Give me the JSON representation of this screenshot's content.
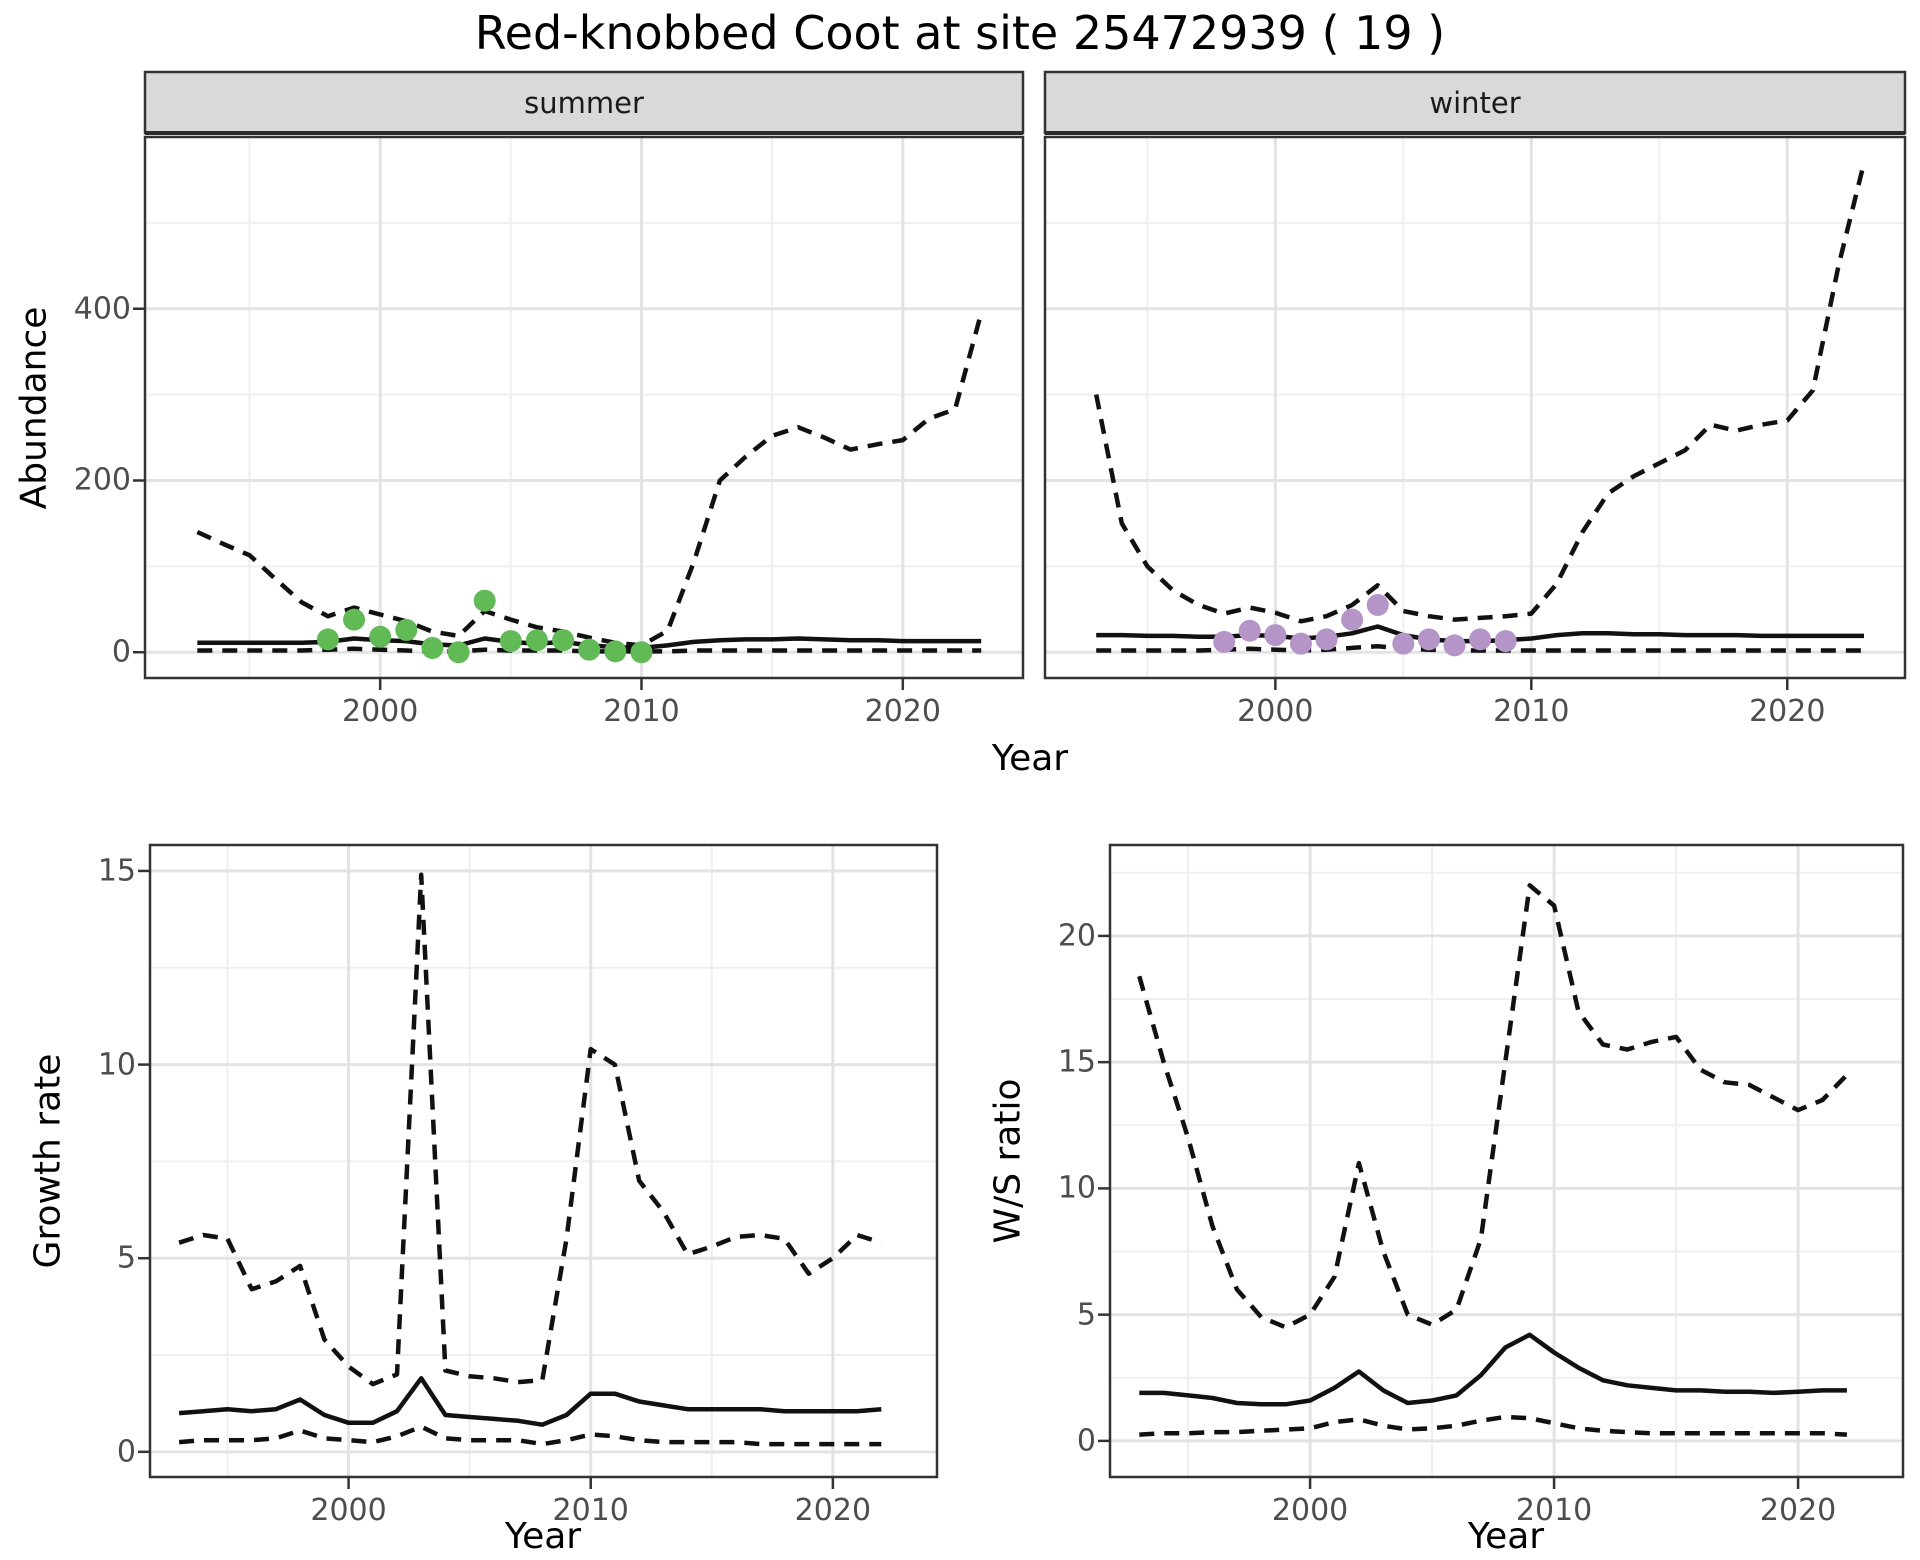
{
  "title": "Red-knobbed Coot at site 25472939 ( 19 )",
  "colors": {
    "summer_points": "#61BA56",
    "winter_points": "#B594C8",
    "strip_bg": "#D9D9D9",
    "panel_border": "#333333",
    "grid_major": "#E3E3E3",
    "grid_minor": "#EFEFEF",
    "line_color": "#111111",
    "tick_text": "#4D4D4D"
  },
  "facets": {
    "summer_label": "summer",
    "winter_label": "winter"
  },
  "axis_labels": {
    "abundance": "Abundance",
    "growth_rate": "Growth rate",
    "ws_ratio": "W/S ratio",
    "year": "Year"
  },
  "chart_data": [
    {
      "id": "abundance-summer",
      "type": "line",
      "facet_label": "summer",
      "ylabel": "Abundance",
      "xlabel": "Year",
      "xlim": [
        1991.0,
        2024.6
      ],
      "ylim": [
        -30,
        600
      ],
      "xticks": {
        "labels": [
          "2000",
          "2010",
          "2020"
        ],
        "values": [
          2000,
          2010,
          2020
        ],
        "minor": [
          1995,
          2005,
          2015
        ]
      },
      "yticks": {
        "labels": [
          "0",
          "200",
          "400"
        ],
        "values": [
          0,
          200,
          400
        ],
        "minor": [
          100,
          300,
          500
        ]
      },
      "x": [
        1993,
        1994,
        1995,
        1996,
        1997,
        1998,
        1999,
        2000,
        2001,
        2002,
        2003,
        2004,
        2005,
        2006,
        2007,
        2008,
        2009,
        2010,
        2011,
        2012,
        2013,
        2014,
        2015,
        2016,
        2017,
        2018,
        2019,
        2020,
        2021,
        2022,
        2023
      ],
      "series": [
        {
          "name": "upper-ci",
          "style": "dashed",
          "values": [
            140,
            126,
            113,
            85,
            58,
            42,
            52,
            44,
            36,
            24,
            19,
            48,
            38,
            29,
            24,
            17,
            11,
            8,
            25,
            105,
            200,
            228,
            252,
            262,
            250,
            236,
            242,
            247,
            272,
            283,
            395
          ]
        },
        {
          "name": "median",
          "style": "solid",
          "values": [
            11,
            11,
            11,
            11,
            11,
            12,
            16,
            14,
            13,
            9,
            8,
            16,
            12,
            10,
            12,
            8,
            6,
            5,
            8,
            12,
            14,
            15,
            15,
            16,
            15,
            14,
            14,
            13,
            13,
            13,
            13
          ]
        },
        {
          "name": "lower-ci",
          "style": "dashed",
          "values": [
            2,
            2,
            2,
            2,
            2,
            3,
            4,
            3,
            2,
            1,
            1,
            3,
            2,
            2,
            2,
            1,
            1,
            1,
            1,
            2,
            2,
            2,
            2,
            2,
            2,
            2,
            2,
            2,
            2,
            2,
            2
          ]
        }
      ],
      "points": {
        "name": "observed-summer-counts",
        "color": "#61BA56",
        "x": [
          1998,
          1999,
          2000,
          2001,
          2002,
          2003,
          2004,
          2005,
          2006,
          2007,
          2008,
          2009,
          2010
        ],
        "y": [
          15,
          38,
          18,
          26,
          5,
          0,
          60,
          13,
          14,
          14,
          3,
          1,
          0
        ]
      }
    },
    {
      "id": "abundance-winter",
      "type": "line",
      "facet_label": "winter",
      "ylabel": "Abundance",
      "xlabel": "Year",
      "xlim": [
        1991.0,
        2024.6
      ],
      "ylim": [
        -30,
        600
      ],
      "xticks": {
        "labels": [
          "2000",
          "2010",
          "2020"
        ],
        "values": [
          2000,
          2010,
          2020
        ],
        "minor": [
          1995,
          2005,
          2015
        ]
      },
      "yticks": {
        "labels": [
          "0",
          "200",
          "400"
        ],
        "values": [
          0,
          200,
          400
        ],
        "minor": [
          100,
          300,
          500
        ]
      },
      "x": [
        1993,
        1994,
        1995,
        1996,
        1997,
        1998,
        1999,
        2000,
        2001,
        2002,
        2003,
        2004,
        2005,
        2006,
        2007,
        2008,
        2009,
        2010,
        2011,
        2012,
        2013,
        2014,
        2015,
        2016,
        2017,
        2018,
        2019,
        2020,
        2021,
        2022,
        2023
      ],
      "series": [
        {
          "name": "upper-ci",
          "style": "dashed",
          "values": [
            300,
            150,
            100,
            72,
            55,
            45,
            52,
            46,
            36,
            42,
            55,
            78,
            48,
            42,
            38,
            40,
            42,
            45,
            80,
            140,
            185,
            205,
            220,
            235,
            265,
            258,
            265,
            270,
            305,
            450,
            570
          ]
        },
        {
          "name": "median",
          "style": "solid",
          "values": [
            20,
            20,
            19,
            19,
            18,
            18,
            20,
            19,
            16,
            18,
            22,
            30,
            20,
            15,
            13,
            13,
            14,
            16,
            20,
            22,
            22,
            21,
            21,
            20,
            20,
            20,
            19,
            19,
            19,
            19,
            19
          ]
        },
        {
          "name": "lower-ci",
          "style": "dashed",
          "values": [
            2,
            2,
            2,
            2,
            2,
            3,
            4,
            3,
            2,
            3,
            5,
            7,
            4,
            3,
            2,
            2,
            2,
            2,
            2,
            2,
            2,
            2,
            2,
            2,
            2,
            2,
            2,
            2,
            2,
            2,
            2
          ]
        }
      ],
      "points": {
        "name": "observed-winter-counts",
        "color": "#B594C8",
        "x": [
          1998,
          1999,
          2000,
          2001,
          2002,
          2003,
          2004,
          2005,
          2006,
          2007,
          2008,
          2009
        ],
        "y": [
          12,
          25,
          20,
          10,
          15,
          38,
          55,
          10,
          15,
          8,
          15,
          13
        ]
      }
    },
    {
      "id": "growth-rate",
      "type": "line",
      "ylabel": "Growth rate",
      "xlabel": "Year",
      "xlim": [
        1991.8,
        2024.3
      ],
      "ylim": [
        -0.65,
        15.67
      ],
      "xticks": {
        "labels": [
          "2000",
          "2010",
          "2020"
        ],
        "values": [
          2000,
          2010,
          2020
        ],
        "minor": [
          1995,
          2005,
          2015
        ]
      },
      "yticks": {
        "labels": [
          "0",
          "5",
          "10",
          "15"
        ],
        "values": [
          0,
          5,
          10,
          15
        ],
        "minor": [
          2.5,
          7.5,
          12.5
        ]
      },
      "x": [
        1993,
        1994,
        1995,
        1996,
        1997,
        1998,
        1999,
        2000,
        2001,
        2002,
        2003,
        2004,
        2005,
        2006,
        2007,
        2008,
        2009,
        2010,
        2011,
        2012,
        2013,
        2014,
        2015,
        2016,
        2017,
        2018,
        2019,
        2020,
        2021,
        2022
      ],
      "series": [
        {
          "name": "upper-ci",
          "style": "dashed",
          "values": [
            5.4,
            5.6,
            5.5,
            4.2,
            4.4,
            4.8,
            2.9,
            2.2,
            1.75,
            2.0,
            14.9,
            2.1,
            1.95,
            1.9,
            1.8,
            1.85,
            5.5,
            10.4,
            10.0,
            7.0,
            6.2,
            5.1,
            5.3,
            5.55,
            5.6,
            5.5,
            4.6,
            5.0,
            5.6,
            5.4
          ]
        },
        {
          "name": "median",
          "style": "solid",
          "values": [
            1.0,
            1.05,
            1.1,
            1.05,
            1.1,
            1.35,
            0.95,
            0.75,
            0.75,
            1.05,
            1.9,
            0.95,
            0.9,
            0.85,
            0.8,
            0.7,
            0.95,
            1.5,
            1.5,
            1.3,
            1.2,
            1.1,
            1.1,
            1.1,
            1.1,
            1.05,
            1.05,
            1.05,
            1.05,
            1.1
          ]
        },
        {
          "name": "lower-ci",
          "style": "dashed",
          "values": [
            0.25,
            0.3,
            0.3,
            0.3,
            0.35,
            0.55,
            0.35,
            0.3,
            0.25,
            0.4,
            0.65,
            0.35,
            0.3,
            0.3,
            0.3,
            0.2,
            0.3,
            0.45,
            0.4,
            0.3,
            0.25,
            0.25,
            0.25,
            0.25,
            0.2,
            0.2,
            0.2,
            0.2,
            0.2,
            0.2
          ]
        }
      ]
    },
    {
      "id": "ws-ratio",
      "type": "line",
      "ylabel": "W/S ratio",
      "xlabel": "Year",
      "xlim": [
        1991.8,
        2024.3
      ],
      "ylim": [
        -1.43,
        23.6
      ],
      "xticks": {
        "labels": [
          "2000",
          "2010",
          "2020"
        ],
        "values": [
          2000,
          2010,
          2020
        ],
        "minor": [
          1995,
          2005,
          2015
        ]
      },
      "yticks": {
        "labels": [
          "0",
          "5",
          "10",
          "15",
          "20"
        ],
        "values": [
          0,
          5,
          10,
          15,
          20
        ],
        "minor": [
          2.5,
          7.5,
          12.5,
          17.5,
          22.5
        ]
      },
      "x": [
        1993,
        1994,
        1995,
        1996,
        1997,
        1998,
        1999,
        2000,
        2001,
        2002,
        2003,
        2004,
        2005,
        2006,
        2007,
        2008,
        2009,
        2010,
        2011,
        2012,
        2013,
        2014,
        2015,
        2016,
        2017,
        2018,
        2019,
        2020,
        2021,
        2022
      ],
      "series": [
        {
          "name": "upper-ci",
          "style": "dashed",
          "values": [
            18.4,
            15.0,
            12.0,
            8.5,
            6.0,
            4.9,
            4.5,
            5.0,
            6.5,
            11.0,
            7.5,
            5.0,
            4.6,
            5.2,
            8.0,
            15.0,
            22.0,
            21.2,
            17.0,
            15.7,
            15.5,
            15.8,
            16.0,
            14.7,
            14.2,
            14.1,
            13.6,
            13.1,
            13.5,
            14.5
          ]
        },
        {
          "name": "median",
          "style": "solid",
          "values": [
            1.9,
            1.9,
            1.8,
            1.7,
            1.5,
            1.45,
            1.45,
            1.6,
            2.1,
            2.75,
            2.0,
            1.5,
            1.6,
            1.8,
            2.6,
            3.7,
            4.2,
            3.5,
            2.9,
            2.4,
            2.2,
            2.1,
            2.0,
            2.0,
            1.95,
            1.95,
            1.9,
            1.95,
            2.0,
            2.0
          ]
        },
        {
          "name": "lower-ci",
          "style": "dashed",
          "values": [
            0.25,
            0.3,
            0.3,
            0.35,
            0.35,
            0.4,
            0.45,
            0.5,
            0.75,
            0.85,
            0.6,
            0.45,
            0.5,
            0.6,
            0.8,
            0.95,
            0.9,
            0.7,
            0.5,
            0.4,
            0.35,
            0.3,
            0.3,
            0.3,
            0.3,
            0.3,
            0.3,
            0.3,
            0.3,
            0.25
          ]
        }
      ]
    }
  ]
}
